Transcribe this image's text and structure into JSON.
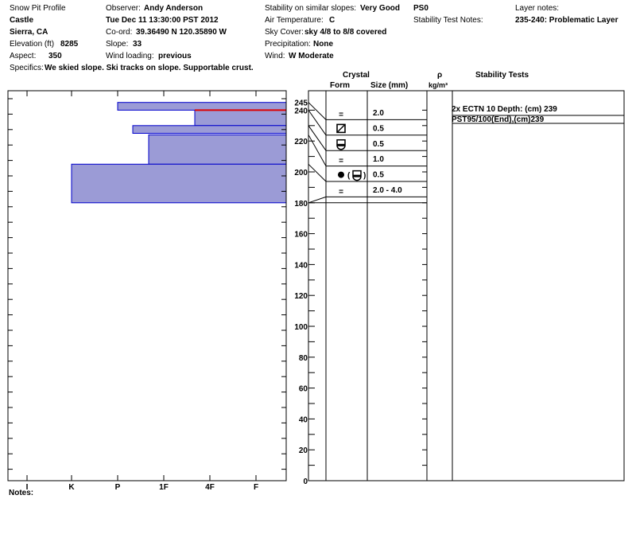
{
  "header": {
    "col1": {
      "title": "Snow Pit Profile",
      "location": "Castle",
      "region": "Sierra, CA",
      "elevation_label": "Elevation (ft)",
      "elevation": "8285",
      "aspect_label": "Aspect:",
      "aspect": "350",
      "specifics_label": "Specifics:",
      "specifics": "We skied slope. Ski tracks on slope. Supportable crust."
    },
    "col2": {
      "observer_label": "Observer:",
      "observer": "Andy Anderson",
      "datetime": "Tue Dec 11 13:30:00 PST 2012",
      "coord_label": "Co-ord:",
      "coord": "39.36490 N 120.35890 W",
      "slope_label": "Slope:",
      "slope": "33",
      "wind_loading_label": "Wind loading:",
      "wind_loading": "previous"
    },
    "col3": {
      "stability_label": "Stability on similar slopes:",
      "stability": "Very Good",
      "air_temp_label": "Air Temperature:",
      "air_temp": "C",
      "sky_label": "Sky Cover:",
      "sky": "sky 4/8 to 8/8 covered",
      "precip_label": "Precipitation:",
      "precip": "None",
      "wind_label": "Wind:",
      "wind": "W Moderate"
    },
    "col4": {
      "pit_id": "PS0",
      "stability_notes_label": "Stability Test Notes:"
    },
    "col5": {
      "layer_notes_label": "Layer notes:",
      "layer_notes": "235-240: Problematic Layer"
    }
  },
  "table_headers": {
    "crystal": "Crystal",
    "form": "Form",
    "size": "Size (mm)",
    "rho": "ρ",
    "rho_unit": "kg/m³",
    "stability_tests": "Stability Tests"
  },
  "stability_tests": [
    "2x ECTN 10  Depth: (cm) 239",
    "PST95/100(End),(cm)239"
  ],
  "notes_label": "Notes:",
  "colors": {
    "hardness_fill": "#9b9bd6",
    "hardness_stroke": "#0000cc",
    "problem_line": "#dd0000"
  },
  "chart_data": {
    "type": "bar",
    "title": "",
    "xlabel": "",
    "ylabel": "",
    "hardness_scale": [
      "I",
      "K",
      "P",
      "1F",
      "4F",
      "F"
    ],
    "height_ticks": [
      "245",
      "240",
      "220",
      "200",
      "180",
      "160",
      "140",
      "120",
      "100",
      "80",
      "60",
      "40",
      "20",
      "0"
    ],
    "ylim": [
      0,
      250
    ],
    "layers": [
      {
        "top": 245,
        "bottom": 240,
        "hardness": "P"
      },
      {
        "top": 240,
        "bottom": 230,
        "hardness": "4F+"
      },
      {
        "top": 230,
        "bottom": 225,
        "hardness": "P-"
      },
      {
        "top": 224,
        "bottom": 205,
        "hardness": "1F+"
      },
      {
        "top": 205,
        "bottom": 180,
        "hardness": "K"
      }
    ],
    "problem_layer": {
      "height": 240,
      "hardness_from": "4F+",
      "hardness_to": "F"
    },
    "crystal_rows": [
      {
        "form": "=",
        "size": "2.0"
      },
      {
        "form": "⧄",
        "size": "0.5"
      },
      {
        "form": "frozen-crust",
        "size": "0.5"
      },
      {
        "form": "=",
        "size": "1.0"
      },
      {
        "form": "● (frozen-crust)",
        "size": "0.5"
      },
      {
        "form": "=",
        "size": "2.0 - 4.0"
      }
    ]
  }
}
